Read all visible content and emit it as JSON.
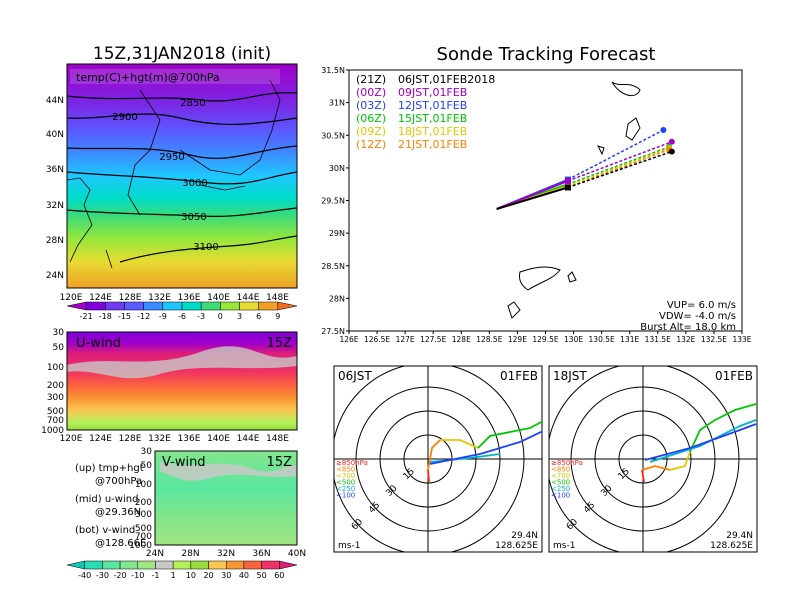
{
  "left_panel": {
    "title": "15Z,31JAN2018 (init)",
    "map_label": "temp(C)+hgt(m)@700hPa",
    "lat_ticks": [
      "44N",
      "40N",
      "36N",
      "32N",
      "28N",
      "24N"
    ],
    "lon_ticks": [
      "120E",
      "124E",
      "128E",
      "132E",
      "136E",
      "140E",
      "144E",
      "148E"
    ],
    "contour_labels": [
      "2850",
      "2900",
      "2950",
      "3000",
      "3050",
      "3100"
    ],
    "temp_colorbar": [
      "-21",
      "-18",
      "-15",
      "-12",
      "-9",
      "-6",
      "-3",
      "0",
      "3",
      "6",
      "9"
    ],
    "temp_colors": [
      "#a000c8",
      "#8200dc",
      "#6e3cf0",
      "#5a5aff",
      "#3c8cff",
      "#1ec8ff",
      "#00dcc8",
      "#3cdc78",
      "#96e63c",
      "#e6dc32",
      "#f0a028",
      "#fa6a1e"
    ],
    "uwind_label": "U-wind",
    "uwind_time": "15Z",
    "pressure_ticks": [
      "30",
      "50",
      "100",
      "200",
      "300",
      "500",
      "700",
      "1000"
    ],
    "vwind_label": "V-wind",
    "vwind_time": "15Z",
    "vwind_lat_ticks": [
      "24N",
      "28N",
      "32N",
      "36N",
      "40N"
    ],
    "legend_lines": [
      "(up) tmp+hgt",
      "@700hPa",
      "(mid) u-wind",
      "@29.36N",
      "(bot) v-wind",
      "@128.66E"
    ],
    "wind_colorbar": [
      "-40",
      "-30",
      "-20",
      "-10",
      "-1",
      "1",
      "10",
      "20",
      "30",
      "40",
      "50",
      "60"
    ],
    "wind_colors": [
      "#10c8b4",
      "#28dcb4",
      "#5ae6a0",
      "#82e68c",
      "#a0e682",
      "#c8c8c8",
      "#b4f05a",
      "#96dc3c",
      "#fac850",
      "#fa9632",
      "#fa643c",
      "#f03264",
      "#dc1e78"
    ]
  },
  "tracking": {
    "title": "Sonde Tracking Forecast",
    "lat_ticks": [
      "31.5N",
      "31N",
      "30.5N",
      "30N",
      "29.5N",
      "29N",
      "28.5N",
      "28N",
      "27.5N"
    ],
    "lon_ticks": [
      "126E",
      "126.5E",
      "127E",
      "127.5E",
      "128E",
      "128.5E",
      "129E",
      "129.5E",
      "130E",
      "130.5E",
      "131E",
      "131.5E",
      "132E",
      "132.5E",
      "133E"
    ],
    "runs": [
      {
        "code": "(21Z)",
        "time": "06JST,01FEB2018",
        "color": "#000000"
      },
      {
        "code": "(00Z)",
        "time": "09JST,01FEB",
        "color": "#a000c8"
      },
      {
        "code": "(03Z)",
        "time": "12JST,01FEB",
        "color": "#2040ff"
      },
      {
        "code": "(06Z)",
        "time": "15JST,01FEB",
        "color": "#00c800"
      },
      {
        "code": "(09Z)",
        "time": "18JST,01FEB",
        "color": "#e6c800"
      },
      {
        "code": "(12Z)",
        "time": "21JST,01FEB",
        "color": "#ff8000"
      }
    ],
    "params": [
      "VUP= 6.0 m/s",
      "VDW= -4.0 m/s",
      "Burst Alt= 18.0 km"
    ]
  },
  "chart_data": [
    {
      "type": "line",
      "title": "Sonde Tracking Forecast",
      "xlim": [
        126,
        133
      ],
      "ylim": [
        27.5,
        31.5
      ],
      "series": [
        {
          "name": "06JST,01FEB2018",
          "ascent": [
            [
              128.63,
              29.37
            ],
            [
              129.9,
              29.7
            ]
          ],
          "descent": [
            [
              129.9,
              29.7
            ],
            [
              131.75,
              30.25
            ]
          ]
        },
        {
          "name": "09JST,01FEB",
          "ascent": [
            [
              128.63,
              29.37
            ],
            [
              129.9,
              29.8
            ]
          ],
          "descent": [
            [
              129.9,
              29.8
            ],
            [
              131.75,
              30.4
            ]
          ]
        },
        {
          "name": "12JST,01FEB",
          "ascent": [
            [
              128.63,
              29.37
            ],
            [
              129.9,
              29.82
            ]
          ],
          "descent": [
            [
              129.9,
              29.82
            ],
            [
              131.6,
              30.58
            ]
          ]
        },
        {
          "name": "15JST,01FEB",
          "ascent": [
            [
              128.63,
              29.37
            ],
            [
              129.9,
              29.75
            ]
          ],
          "descent": [
            [
              129.9,
              29.75
            ],
            [
              131.7,
              30.32
            ]
          ]
        },
        {
          "name": "18JST,01FEB",
          "ascent": [
            [
              128.63,
              29.37
            ],
            [
              129.9,
              29.72
            ]
          ],
          "descent": [
            [
              129.9,
              29.72
            ],
            [
              131.7,
              30.3
            ]
          ]
        },
        {
          "name": "21JST,01FEB",
          "ascent": [
            [
              128.63,
              29.37
            ],
            [
              129.9,
              29.7
            ]
          ],
          "descent": [
            [
              129.9,
              29.7
            ],
            [
              131.7,
              30.28
            ]
          ]
        }
      ]
    }
  ],
  "hodographs": [
    {
      "time": "06JST",
      "date": "01FEB",
      "lat": "29.4N",
      "lon": "128.625E",
      "unit": "ms-1",
      "rings": [
        "15",
        "30",
        "45",
        "60"
      ],
      "levels": [
        {
          "label": "≥850hPa",
          "color": "#ff2020"
        },
        {
          "label": "<850",
          "color": "#ff8000"
        },
        {
          "label": "<700",
          "color": "#e6c800"
        },
        {
          "label": "<500",
          "color": "#00c800"
        },
        {
          "label": "<250",
          "color": "#00b4c8"
        },
        {
          "label": "<100",
          "color": "#2040ff"
        }
      ]
    },
    {
      "time": "18JST",
      "date": "01FEB",
      "lat": "29.4N",
      "lon": "128.625E",
      "unit": "ms-1",
      "rings": [
        "15",
        "30",
        "45",
        "60"
      ],
      "levels": [
        {
          "label": "≥850hPa",
          "color": "#ff2020"
        },
        {
          "label": "<850",
          "color": "#ff8000"
        },
        {
          "label": "<700",
          "color": "#e6c800"
        },
        {
          "label": "<500",
          "color": "#00c800"
        },
        {
          "label": "<250",
          "color": "#00b4c8"
        },
        {
          "label": "<100",
          "color": "#2040ff"
        }
      ]
    }
  ]
}
